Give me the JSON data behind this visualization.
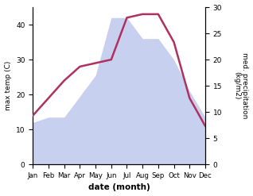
{
  "months": [
    "Jan",
    "Feb",
    "Mar",
    "Apr",
    "May",
    "Jun",
    "Jul",
    "Aug",
    "Sep",
    "Oct",
    "Nov",
    "Dec"
  ],
  "temperature": [
    14,
    19,
    24,
    28,
    29,
    30,
    42,
    43,
    43,
    35,
    19,
    11
  ],
  "precipitation": [
    8,
    9,
    9,
    13,
    17,
    28,
    28,
    24,
    24,
    20,
    14,
    9
  ],
  "temp_color": "#b03060",
  "precip_fill_color": "#c8d0f0",
  "ylabel_left": "max temp (C)",
  "ylabel_right": "med. precipitation\n(kg/m2)",
  "xlabel": "date (month)",
  "ylim_left": [
    0,
    45
  ],
  "ylim_right": [
    0,
    30
  ],
  "yticks_left": [
    0,
    10,
    20,
    30,
    40
  ],
  "yticks_right": [
    0,
    5,
    10,
    15,
    20,
    25,
    30
  ],
  "background_color": "#ffffff"
}
